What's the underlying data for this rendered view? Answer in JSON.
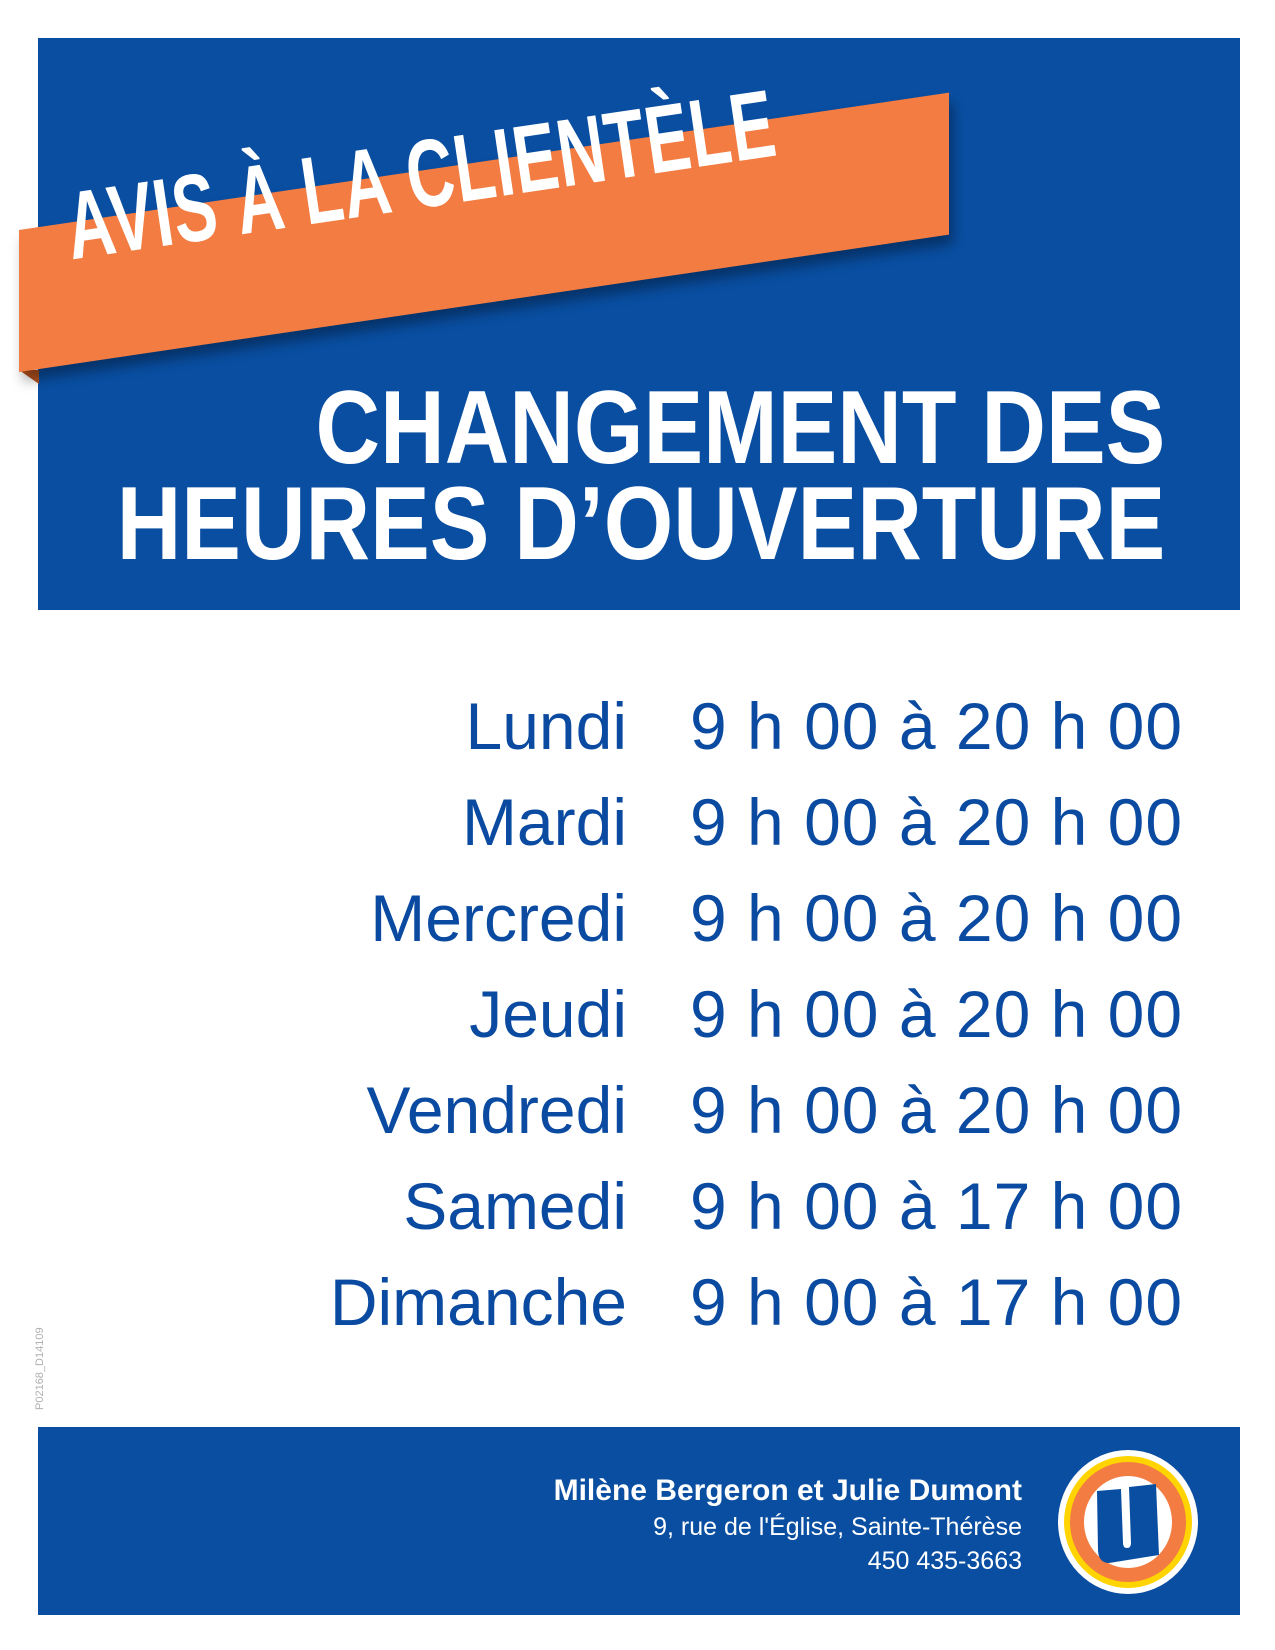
{
  "header": {
    "banner": "AVIS À LA CLIENTÈLE",
    "title_line1": "CHANGEMENT DES",
    "title_line2": "HEURES D’OUVERTURE"
  },
  "schedule": [
    {
      "day": "Lundi",
      "hours": "9 h 00 à 20 h 00"
    },
    {
      "day": "Mardi",
      "hours": "9 h 00 à 20 h 00"
    },
    {
      "day": "Mercredi",
      "hours": "9 h 00 à 20 h 00"
    },
    {
      "day": "Jeudi",
      "hours": "9 h 00 à 20 h 00"
    },
    {
      "day": "Vendredi",
      "hours": "9 h 00 à 20 h 00"
    },
    {
      "day": "Samedi",
      "hours": "9 h 00 à 17 h 00"
    },
    {
      "day": "Dimanche",
      "hours": "9 h 00 à 17 h 00"
    }
  ],
  "print_code": "P02168_D14109",
  "footer": {
    "owners": "Milène Bergeron et Julie Dumont",
    "address": "9, rue de l'Église, Sainte-Thérèse",
    "phone": "450 435-3663",
    "logo": "U"
  },
  "colors": {
    "blue": "#094ea1",
    "orange": "#f27c41",
    "yellow": "#ffd400",
    "text_blue": "#0a4aa0"
  }
}
